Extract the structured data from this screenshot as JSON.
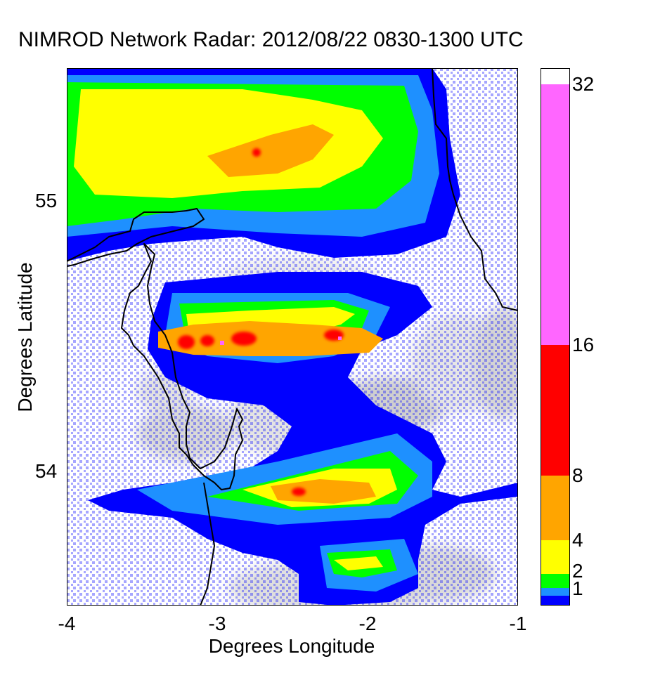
{
  "title": "NIMROD Network Radar: 2012/08/22 0830-1300 UTC",
  "axes": {
    "xlabel": "Degrees Longitude",
    "ylabel": "Degrees Latitude",
    "xlim": [
      -4,
      -1
    ],
    "ylim": [
      53.5,
      55.48
    ],
    "xticks": [
      "-4",
      "-3",
      "-2",
      "-1"
    ],
    "yticks": [
      "54",
      "55"
    ]
  },
  "colorbar": {
    "tick_labels": [
      "1",
      "2",
      "4",
      "8",
      "16",
      "32"
    ],
    "bins": [
      {
        "from": 0.5,
        "to": 1,
        "color": "#0000ff"
      },
      {
        "from": 1,
        "to": 1.5,
        "color": "#1e90ff"
      },
      {
        "from": 1.5,
        "to": 2,
        "color": "#00ff00"
      },
      {
        "from": 2,
        "to": 4,
        "color": "#ffff00"
      },
      {
        "from": 4,
        "to": 8,
        "color": "#ffa500"
      },
      {
        "from": 8,
        "to": 16,
        "color": "#ff0000"
      },
      {
        "from": 16,
        "to": 32,
        "color": "#ff66ff"
      },
      {
        "from": 32,
        "to": 33,
        "color": "#ffffff"
      }
    ]
  }
}
